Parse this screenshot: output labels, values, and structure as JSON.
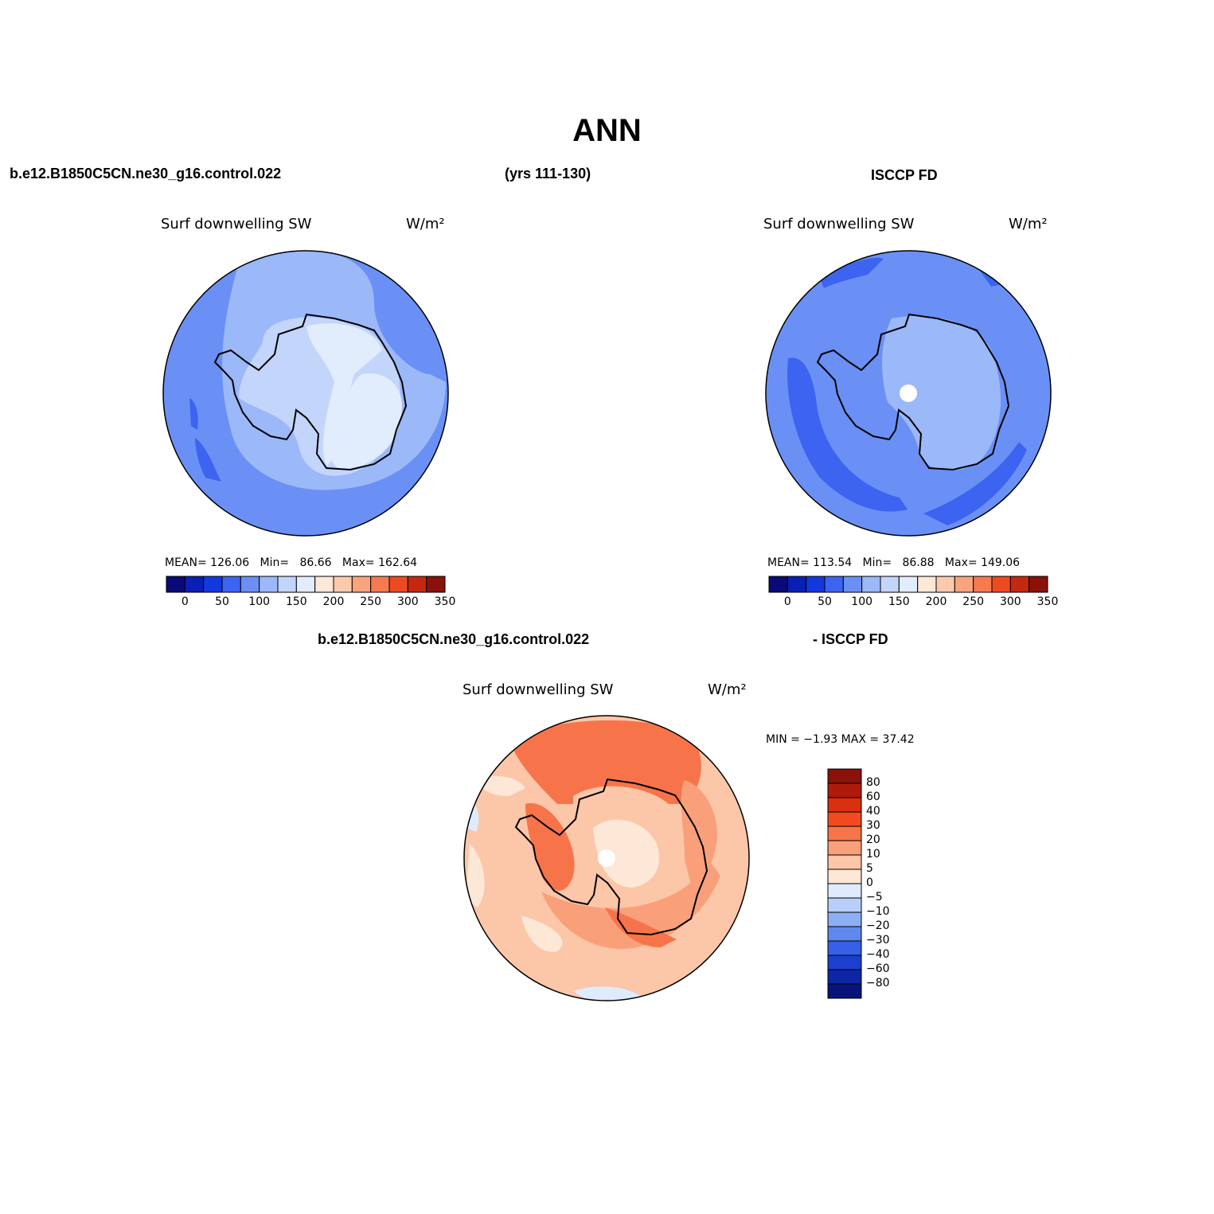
{
  "page": {
    "title": "ANN",
    "case_name": "b.e12.B1850C5CN.ne30_g16.control.022",
    "years": "(yrs 111-130)",
    "obs_name": "ISCCP FD",
    "diff_left": "b.e12.B1850C5CN.ne30_g16.control.022",
    "diff_right": "- ISCCP FD"
  },
  "panels": {
    "model": {
      "title": "Surf downwelling SW",
      "units": "W/m²",
      "mean_label": "MEAN=",
      "mean": "126.06",
      "min_label": "Min=",
      "min": "86.66",
      "max_label": "Max=",
      "max": "162.64"
    },
    "obs": {
      "title": "Surf downwelling SW",
      "units": "W/m²",
      "mean_label": "MEAN=",
      "mean": "113.54",
      "min_label": "Min=",
      "min": "86.88",
      "max_label": "Max=",
      "max": "149.06"
    },
    "diff": {
      "title": "Surf downwelling SW",
      "units": "W/m²",
      "minmax_text": "MIN =  −1.93 MAX =   37.42"
    }
  },
  "abs_colorbar": {
    "colors": [
      "#0a0a78",
      "#0a1fb4",
      "#1238e0",
      "#3c64f0",
      "#6a90f5",
      "#9bb8f8",
      "#c3d5fb",
      "#e1ecfd",
      "#fde7d7",
      "#fcc9ad",
      "#f9a47e",
      "#f57a4f",
      "#ee4a22",
      "#c42910",
      "#8a1208"
    ],
    "labels": [
      "0",
      "50",
      "100",
      "150",
      "200",
      "250",
      "300",
      "350"
    ]
  },
  "diff_colorbar": {
    "colors": [
      "#8a1208",
      "#b01a0c",
      "#d9300f",
      "#f24a1e",
      "#f7744a",
      "#f9a07a",
      "#fcc6a8",
      "#fde7d7",
      "#deebfc",
      "#b9cff9",
      "#8daff5",
      "#5f88ee",
      "#3660e6",
      "#1b3fcf",
      "#0d26a8",
      "#07147a"
    ],
    "labels": [
      "80",
      "60",
      "40",
      "30",
      "20",
      "10",
      "5",
      "0",
      "−5",
      "−10",
      "−20",
      "−30",
      "−40",
      "−60",
      "−80"
    ]
  },
  "map_colors": {
    "model_base": "#6a90f5",
    "model_mid": "#9bb8f8",
    "model_light": "#c3d5fb",
    "model_lightest": "#e1ecfd",
    "model_dark": "#3c64f0",
    "obs_base": "#6a90f5",
    "obs_mid": "#9bb8f8",
    "obs_dark": "#3c64f0",
    "diff_base": "#fcc6a8",
    "diff_mid": "#f9a07a",
    "diff_hi": "#f7744a",
    "diff_pale": "#fde7d7",
    "diff_neg": "#deebfc"
  }
}
